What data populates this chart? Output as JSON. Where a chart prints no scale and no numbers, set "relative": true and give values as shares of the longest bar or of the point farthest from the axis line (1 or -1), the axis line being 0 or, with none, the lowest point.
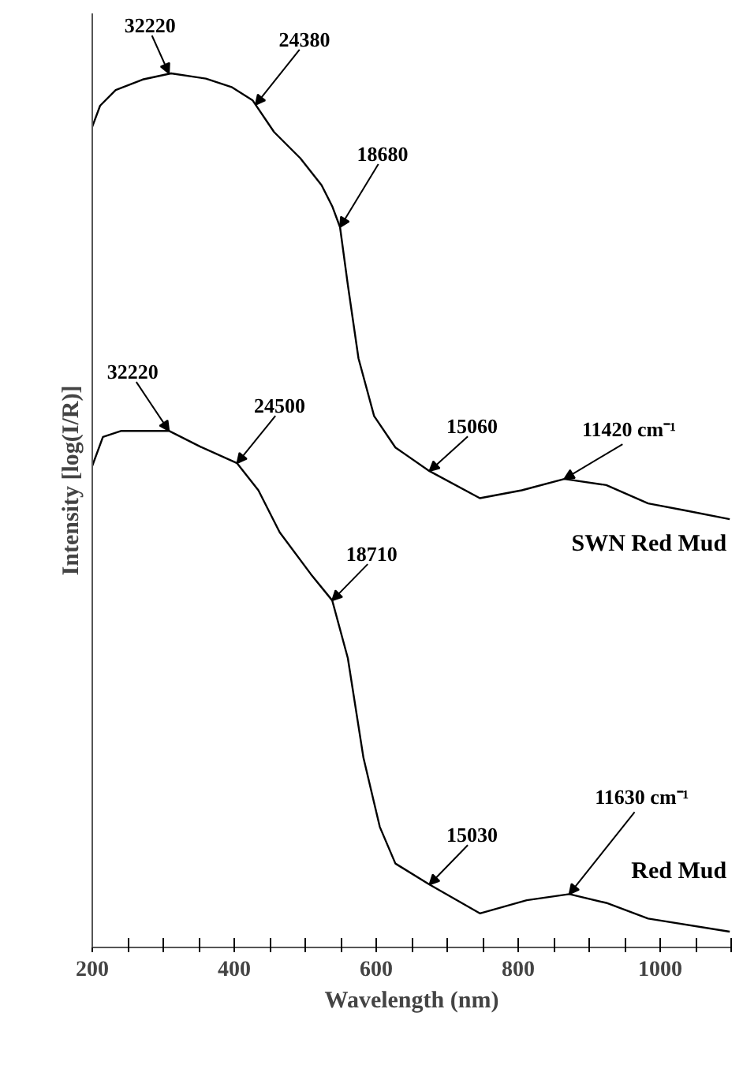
{
  "chart_data": {
    "type": "line",
    "relative": true,
    "xlabel": "Wavelength (nm)",
    "ylabel": "Intensity [log(I/R)]",
    "xlim": [
      200,
      1100
    ],
    "xticks": [
      200,
      {
        "value": 250,
        "label": null
      },
      {
        "value": 300,
        "label": null
      },
      {
        "value": 350,
        "label": null
      },
      400,
      {
        "value": 450,
        "label": null
      },
      {
        "value": 500,
        "label": null
      },
      {
        "value": 550,
        "label": null
      },
      600,
      {
        "value": 650,
        "label": null
      },
      {
        "value": 700,
        "label": null
      },
      {
        "value": 750,
        "label": null
      },
      800,
      {
        "value": 850,
        "label": null
      },
      {
        "value": 900,
        "label": null
      },
      {
        "value": 950,
        "label": null
      },
      1000,
      {
        "value": 1050,
        "label": null
      },
      {
        "value": 1100,
        "label": null
      }
    ],
    "grid": false,
    "legend": false,
    "marker": "none",
    "line_style": "solid",
    "series": [
      {
        "name": "SWN Red Mud",
        "color": "#000000",
        "x": [
          200,
          211,
          233,
          271,
          311,
          360,
          397,
          426,
          456,
          493,
          523,
          538,
          549,
          560,
          575,
          597,
          627,
          675,
          746,
          805,
          865,
          924,
          983,
          1035,
          1098
        ],
        "values": [
          0.939,
          0.963,
          0.981,
          0.993,
          1.0,
          0.994,
          0.984,
          0.969,
          0.933,
          0.903,
          0.872,
          0.848,
          0.824,
          0.758,
          0.674,
          0.608,
          0.572,
          0.545,
          0.514,
          0.523,
          0.536,
          0.529,
          0.508,
          0.5,
          0.49
        ]
      },
      {
        "name": "Red Mud",
        "color": "#000000",
        "x": [
          200,
          215,
          241,
          308,
          352,
          404,
          434,
          464,
          508,
          538,
          560,
          582,
          605,
          627,
          675,
          746,
          812,
          872,
          924,
          983,
          1098
        ],
        "values": [
          0.551,
          0.584,
          0.591,
          0.591,
          0.573,
          0.554,
          0.523,
          0.475,
          0.427,
          0.397,
          0.331,
          0.217,
          0.138,
          0.096,
          0.072,
          0.039,
          0.054,
          0.061,
          0.051,
          0.033,
          0.018
        ]
      }
    ],
    "annotations": [
      {
        "text": "32220",
        "x": 308,
        "y": 1.0
      },
      {
        "text": "24380",
        "x": 430,
        "y": 0.964
      },
      {
        "text": "18680",
        "x": 549,
        "y": 0.824
      },
      {
        "text": "15060",
        "x": 675,
        "y": 0.545
      },
      {
        "text": "11420 cm⁻¹",
        "x": 865,
        "y": 0.536
      },
      {
        "text": "32220",
        "x": 308,
        "y": 0.591
      },
      {
        "text": "24500",
        "x": 404,
        "y": 0.554
      },
      {
        "text": "18710",
        "x": 538,
        "y": 0.397
      },
      {
        "text": "15030",
        "x": 675,
        "y": 0.072
      },
      {
        "text": "11630 cm⁻¹",
        "x": 872,
        "y": 0.061
      }
    ]
  }
}
